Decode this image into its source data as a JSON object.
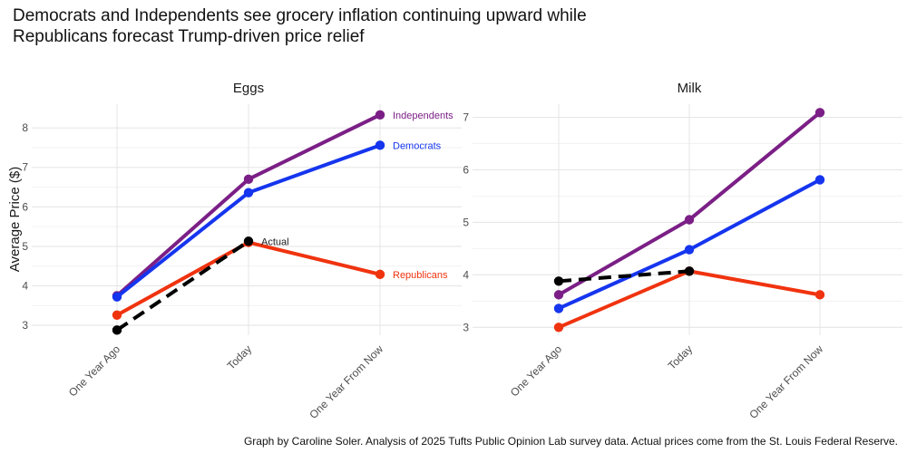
{
  "title": {
    "line1": "Democrats and Independents see grocery inflation continuing upward while",
    "line2": "Republicans forecast Trump-driven price relief"
  },
  "caption": "Graph by Caroline Soler. Analysis of 2025 Tufts Public Opinion Lab survey data. Actual prices come from the St. Louis Federal Reserve.",
  "chart_data": {
    "type": "line",
    "title": "Democrats and Independents see grocery inflation continuing upward while Republicans forecast Trump-driven price relief",
    "ylabel": "Average Price ($)",
    "xlabel": "",
    "categories": [
      "One Year Ago",
      "Today",
      "One Year From Now"
    ],
    "grid": true,
    "colors": {
      "Independents": "#7b1f86",
      "Democrats": "#1535ee",
      "Republicans": "#f0330f",
      "Actual": "#000000"
    },
    "panels": [
      {
        "name": "Eggs",
        "ylim": [
          2.75,
          8.6
        ],
        "yticks": [
          3,
          4,
          5,
          6,
          7,
          8
        ],
        "series": [
          {
            "name": "Independents",
            "values": [
              3.75,
              6.7,
              8.33
            ],
            "label": "Independents"
          },
          {
            "name": "Democrats",
            "values": [
              3.72,
              6.36,
              7.56
            ],
            "label": "Democrats"
          },
          {
            "name": "Republicans",
            "values": [
              3.26,
              5.1,
              4.29
            ],
            "label": "Republicans"
          },
          {
            "name": "Actual",
            "values": [
              2.88,
              5.13,
              null
            ],
            "label": "Actual",
            "dashed": true
          }
        ]
      },
      {
        "name": "Milk",
        "ylim": [
          2.85,
          7.25
        ],
        "yticks": [
          3,
          4,
          5,
          6,
          7
        ],
        "series": [
          {
            "name": "Independents",
            "values": [
              3.62,
              5.05,
              7.09
            ],
            "label": ""
          },
          {
            "name": "Democrats",
            "values": [
              3.36,
              4.48,
              5.81
            ],
            "label": ""
          },
          {
            "name": "Republicans",
            "values": [
              3.0,
              4.07,
              3.62
            ],
            "label": ""
          },
          {
            "name": "Actual",
            "values": [
              3.88,
              4.07,
              null
            ],
            "label": "",
            "dashed": true
          }
        ]
      }
    ]
  }
}
